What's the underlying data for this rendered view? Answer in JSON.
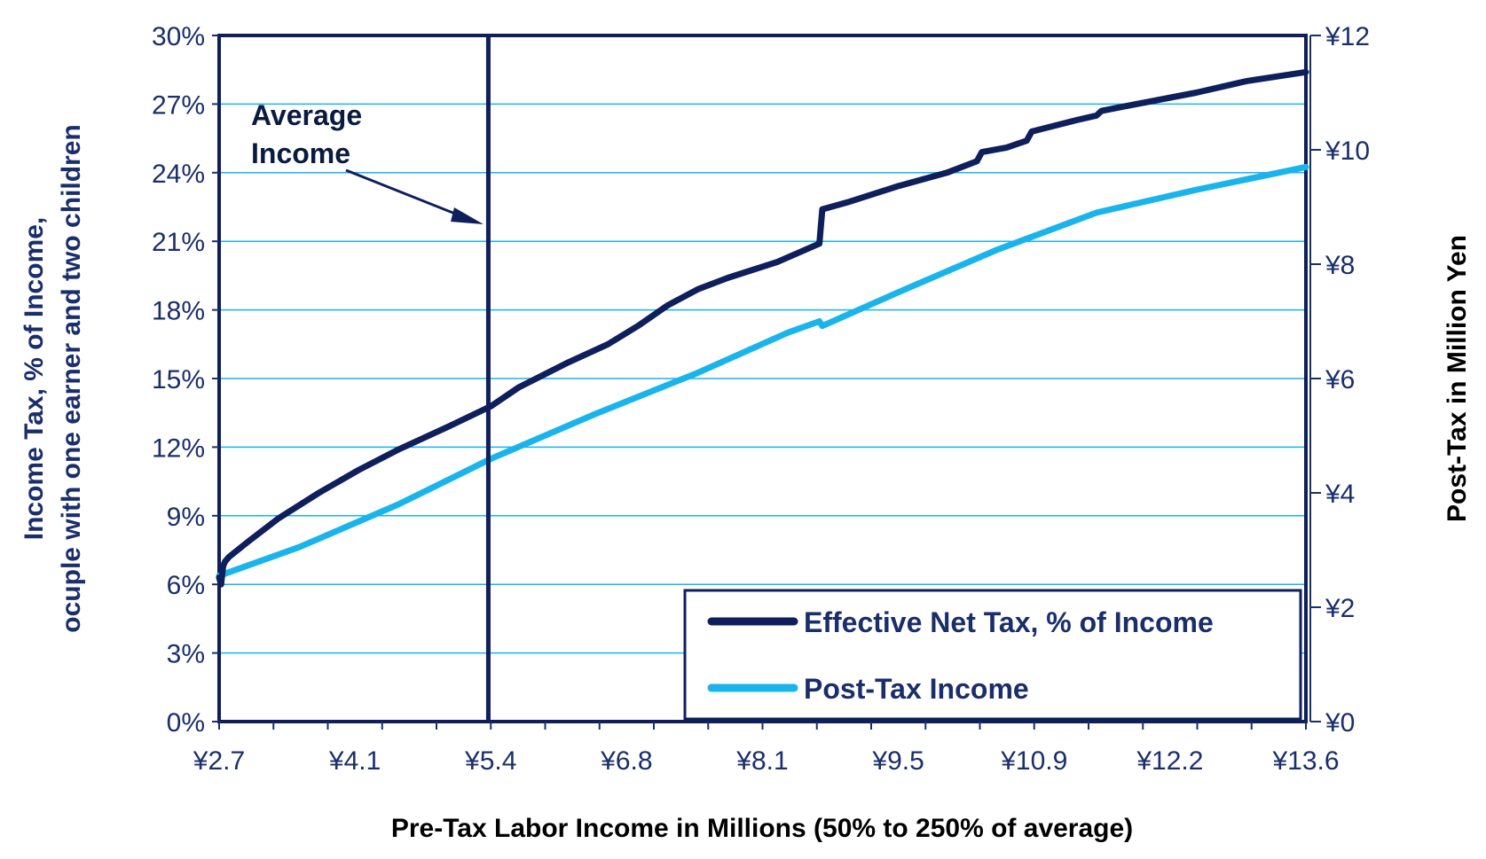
{
  "chart_data": {
    "type": "line",
    "xlabel": "Pre-Tax Labor Income in Millions (50% to 250% of average)",
    "ylabel_left": [
      "Income Tax, % of  Income,",
      "ocuple with one earner and two children"
    ],
    "ylabel_right": "Post-Tax in Million Yen",
    "x_range": [
      2.7,
      13.6
    ],
    "x_tick_labels": [
      "¥2.7",
      "¥4.1",
      "¥5.4",
      "¥6.8",
      "¥8.1",
      "¥9.5",
      "¥10.9",
      "¥12.2",
      "¥13.6"
    ],
    "x_tick_values": [
      2.7,
      4.0625,
      5.425,
      6.7875,
      8.15,
      9.5125,
      10.875,
      12.2375,
      13.6
    ],
    "ylim_left": [
      0,
      30
    ],
    "y_left_tick_labels": [
      "0%",
      "3%",
      "6%",
      "9%",
      "12%",
      "15%",
      "18%",
      "21%",
      "24%",
      "27%",
      "30%"
    ],
    "y_left_tick_values": [
      0,
      3,
      6,
      9,
      12,
      15,
      18,
      21,
      24,
      27,
      30
    ],
    "ylim_right": [
      0,
      12
    ],
    "y_right_tick_labels": [
      "¥0",
      "¥2",
      "¥4",
      "¥6",
      "¥8",
      "¥10",
      "¥12"
    ],
    "y_right_tick_values": [
      0,
      2,
      4,
      6,
      8,
      10,
      12
    ],
    "grid": true,
    "legend_position": "bottom-right",
    "colors": {
      "tax": "#0e1f5c",
      "income": "#1ab4ec",
      "grid": "#1ab4ec",
      "text": "#1a2e6b"
    },
    "annotation": {
      "lines": [
        "Average",
        "Income"
      ],
      "x": 5.4
    },
    "series": [
      {
        "name": "Effective Net Tax, % of Income",
        "axis": "left",
        "x": [
          2.7,
          2.72,
          2.74,
          2.76,
          2.8,
          3.0,
          3.3,
          3.7,
          4.1,
          4.5,
          5.0,
          5.43,
          5.7,
          6.2,
          6.6,
          6.9,
          7.2,
          7.5,
          7.8,
          8.3,
          8.72,
          8.75,
          9.0,
          9.5,
          10.0,
          10.3,
          10.35,
          10.6,
          10.8,
          10.85,
          11.3,
          11.5,
          11.55,
          11.9,
          12.5,
          13.0,
          13.6
        ],
        "values": [
          6.3,
          6.0,
          6.8,
          7.0,
          7.2,
          7.9,
          8.9,
          10.0,
          11.0,
          11.9,
          12.9,
          13.8,
          14.6,
          15.7,
          16.5,
          17.3,
          18.2,
          18.9,
          19.4,
          20.1,
          20.9,
          22.4,
          22.7,
          23.4,
          24.0,
          24.5,
          24.9,
          25.1,
          25.4,
          25.8,
          26.3,
          26.5,
          26.7,
          27.0,
          27.5,
          28.0,
          28.4
        ]
      },
      {
        "name": "Post-Tax Income",
        "axis": "right",
        "x": [
          2.7,
          3.5,
          4.5,
          5.43,
          6.5,
          7.5,
          8.4,
          8.72,
          8.75,
          9.5,
          10.5,
          11.5,
          12.5,
          13.6
        ],
        "values": [
          2.55,
          3.05,
          3.8,
          4.6,
          5.4,
          6.1,
          6.8,
          7.0,
          6.92,
          7.5,
          8.25,
          8.9,
          9.3,
          9.7
        ]
      }
    ]
  }
}
